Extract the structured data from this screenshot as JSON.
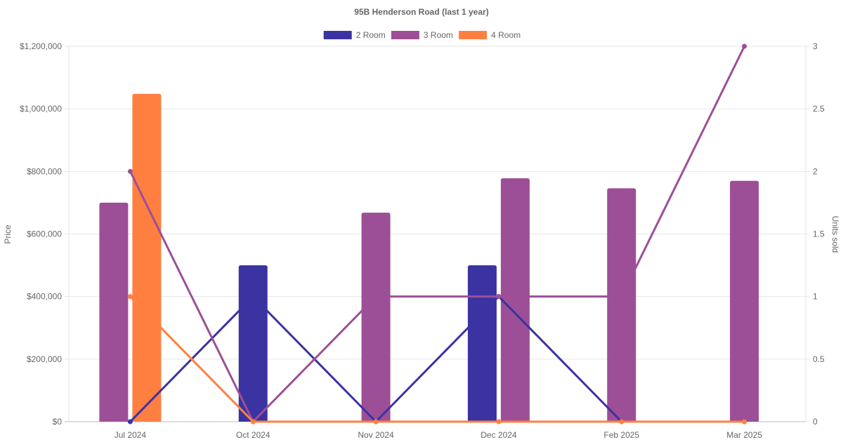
{
  "chart_data": {
    "type": "bar",
    "title": "95B Henderson Road (last 1 year)",
    "categories": [
      "Jul 2024",
      "Oct 2024",
      "Nov 2024",
      "Dec 2024",
      "Feb 2025",
      "Mar 2025"
    ],
    "y_left": {
      "label": "Price",
      "ticks": [
        "$0",
        "$200,000",
        "$400,000",
        "$600,000",
        "$800,000",
        "$1,000,000",
        "$1,200,000"
      ],
      "min": 0,
      "max": 1200000
    },
    "y_right": {
      "label": "Units sold",
      "ticks": [
        "0",
        "0.5",
        "1",
        "1.5",
        "2",
        "2.5",
        "3"
      ],
      "min": 0,
      "max": 3
    },
    "grid": true,
    "legend_position": "top",
    "series": [
      {
        "name": "2 Room",
        "color": "#3a33a1",
        "price": [
          null,
          500000,
          null,
          500000,
          null,
          null
        ],
        "units": [
          0,
          1,
          0,
          1,
          0,
          0
        ]
      },
      {
        "name": "3 Room",
        "color": "#9c4f96",
        "price": [
          700000,
          null,
          668000,
          778000,
          746000,
          770000
        ],
        "units": [
          2,
          0,
          1,
          1,
          1,
          3
        ]
      },
      {
        "name": "4 Room",
        "color": "#ff7f41",
        "price": [
          1048000,
          null,
          null,
          null,
          null,
          null
        ],
        "units": [
          1,
          0,
          0,
          0,
          0,
          0
        ]
      }
    ]
  }
}
